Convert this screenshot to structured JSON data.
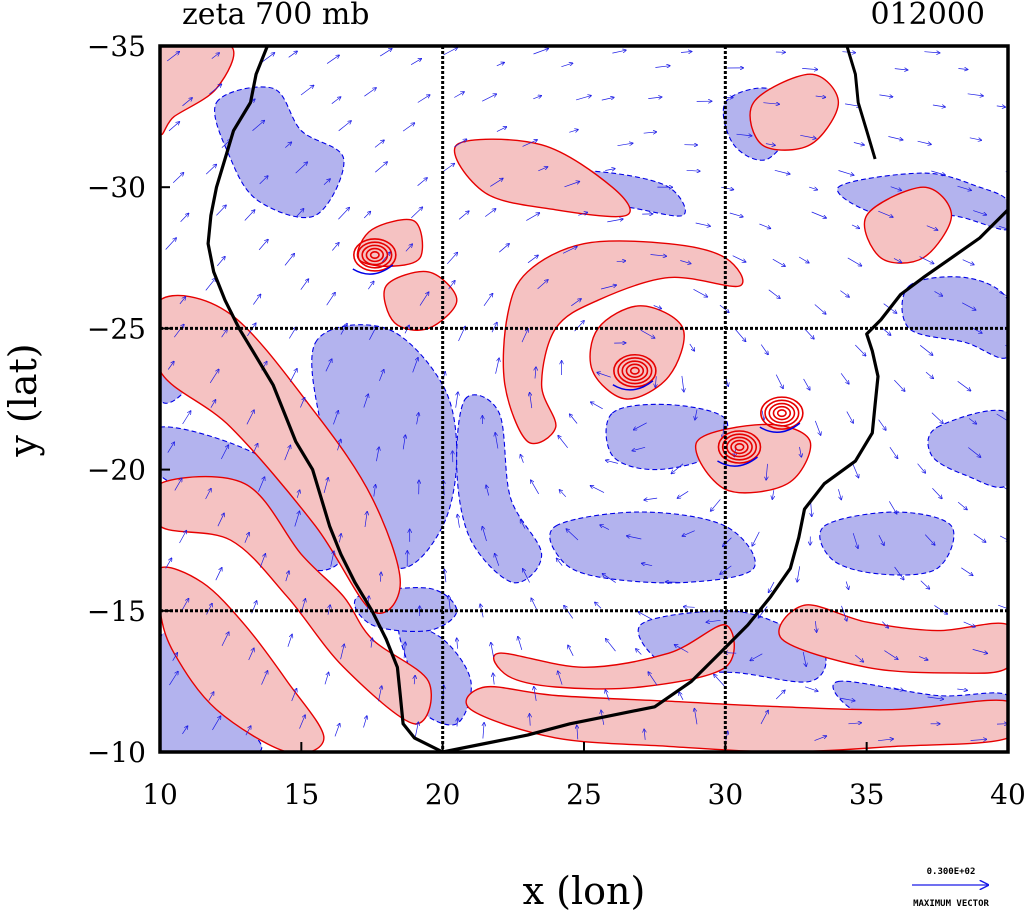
{
  "chart_data": {
    "type": "contour",
    "title": "zeta 700 mb",
    "timestamp": "012000",
    "xlabel": "x (lon)",
    "ylabel": "y (lat)",
    "xlim": [
      10,
      40
    ],
    "ylim": [
      -10,
      -35
    ],
    "xticks": [
      10,
      15,
      20,
      25,
      30,
      35,
      40
    ],
    "xtick_labels": [
      "10",
      "15",
      "20",
      "25",
      "30",
      "35",
      "40"
    ],
    "yticks": [
      -35,
      -30,
      -25,
      -20,
      -15,
      -10
    ],
    "ytick_labels": [
      "−35",
      "−30",
      "−25",
      "−20",
      "−15",
      "−10"
    ],
    "grid_lines": {
      "x": [
        20,
        30
      ],
      "y": [
        -25,
        -15
      ]
    },
    "vector_legend": {
      "value": "0.300E+02",
      "label": "MAXIMUM VECTOR"
    },
    "colors": {
      "positive_fill": "#f5c2c2",
      "positive_line": "#e60000",
      "negative_fill": "#b3b3ee",
      "negative_line": "#0000e6",
      "vector": "#1a1ae6",
      "coastline": "#000000"
    },
    "coastline": [
      [
        13.8,
        -35
      ],
      [
        13.4,
        -34
      ],
      [
        13.2,
        -33
      ],
      [
        12.6,
        -32
      ],
      [
        12.3,
        -31
      ],
      [
        12.0,
        -30
      ],
      [
        11.8,
        -29
      ],
      [
        11.7,
        -28
      ],
      [
        11.9,
        -27
      ],
      [
        12.3,
        -26
      ],
      [
        12.8,
        -25
      ],
      [
        13.4,
        -24
      ],
      [
        14.0,
        -23
      ],
      [
        14.4,
        -22
      ],
      [
        14.8,
        -21
      ],
      [
        15.4,
        -20
      ],
      [
        15.7,
        -19
      ],
      [
        16.0,
        -18
      ],
      [
        16.4,
        -17
      ],
      [
        16.9,
        -16
      ],
      [
        17.5,
        -15
      ],
      [
        18.0,
        -14
      ],
      [
        18.4,
        -13
      ],
      [
        18.5,
        -12
      ],
      [
        18.6,
        -11
      ],
      [
        19.0,
        -10.5
      ],
      [
        20.0,
        -10
      ],
      [
        21.5,
        -10.3
      ],
      [
        23.0,
        -10.6
      ],
      [
        24.5,
        -11.0
      ],
      [
        26.0,
        -11.3
      ],
      [
        27.5,
        -11.6
      ],
      [
        28.8,
        -12.5
      ],
      [
        29.8,
        -13.5
      ],
      [
        30.8,
        -14.5
      ],
      [
        31.6,
        -15.5
      ],
      [
        32.3,
        -16.5
      ],
      [
        32.6,
        -17.6
      ],
      [
        32.8,
        -18.6
      ],
      [
        33.5,
        -19.5
      ],
      [
        34.6,
        -20.3
      ],
      [
        35.2,
        -21.3
      ],
      [
        35.3,
        -22.3
      ],
      [
        35.4,
        -23.3
      ],
      [
        35.2,
        -24.2
      ],
      [
        35.0,
        -24.8
      ],
      [
        35.5,
        -25.3
      ],
      [
        36.2,
        -26.2
      ],
      [
        37.0,
        -26.8
      ],
      [
        38.0,
        -27.5
      ],
      [
        39.0,
        -28.2
      ],
      [
        40.0,
        -29.2
      ]
    ],
    "coastline_north": [
      [
        34.3,
        -35
      ],
      [
        34.6,
        -34
      ],
      [
        34.7,
        -33
      ],
      [
        35.0,
        -32
      ],
      [
        35.3,
        -31
      ]
    ],
    "positive_regions": [
      [
        [
          10,
          -35
        ],
        [
          12.5,
          -35
        ],
        [
          12.0,
          -33.5
        ],
        [
          10.5,
          -32.5
        ],
        [
          10,
          -32
        ]
      ],
      [
        [
          10,
          -26
        ],
        [
          12.5,
          -25.5
        ],
        [
          15.5,
          -22
        ],
        [
          17.5,
          -19
        ],
        [
          18.5,
          -16
        ],
        [
          17.5,
          -15
        ],
        [
          15.5,
          -18
        ],
        [
          12.5,
          -21.5
        ],
        [
          10,
          -23.5
        ]
      ],
      [
        [
          10,
          -19.5
        ],
        [
          13,
          -19.5
        ],
        [
          15,
          -17
        ],
        [
          16.5,
          -15.5
        ],
        [
          17.5,
          -14
        ],
        [
          19.5,
          -12.5
        ],
        [
          19.0,
          -11.0
        ],
        [
          16.5,
          -13
        ],
        [
          14.5,
          -15.5
        ],
        [
          12.5,
          -17.5
        ],
        [
          10,
          -18
        ]
      ],
      [
        [
          10,
          -16.5
        ],
        [
          11.5,
          -16
        ],
        [
          13.0,
          -14.5
        ],
        [
          14.5,
          -12.5
        ],
        [
          15.8,
          -10.5
        ],
        [
          14.5,
          -10
        ],
        [
          12.0,
          -11.5
        ],
        [
          10.5,
          -13.5
        ],
        [
          10,
          -15
        ]
      ],
      [
        [
          20.5,
          -31.5
        ],
        [
          23.5,
          -31.5
        ],
        [
          26,
          -30
        ],
        [
          26.5,
          -29
        ],
        [
          24,
          -29.2
        ],
        [
          21.5,
          -29.8
        ]
      ],
      [
        [
          23,
          -27
        ],
        [
          25,
          -28
        ],
        [
          28,
          -28
        ],
        [
          30,
          -27.5
        ],
        [
          30.5,
          -26.5
        ],
        [
          28,
          -26.8
        ],
        [
          25.5,
          -26
        ],
        [
          24,
          -25
        ],
        [
          23.5,
          -23
        ],
        [
          24,
          -21.5
        ],
        [
          23,
          -21
        ],
        [
          22.2,
          -23
        ],
        [
          22.3,
          -25.5
        ]
      ],
      [
        [
          18,
          -26.5
        ],
        [
          19.5,
          -27
        ],
        [
          20.5,
          -26
        ],
        [
          19.5,
          -25
        ],
        [
          18.3,
          -25.2
        ]
      ],
      [
        [
          25.5,
          -25
        ],
        [
          27,
          -25.8
        ],
        [
          28.5,
          -25
        ],
        [
          28,
          -23.3
        ],
        [
          26.5,
          -22.5
        ],
        [
          25.3,
          -23.5
        ]
      ],
      [
        [
          17.5,
          -28.5
        ],
        [
          19,
          -28.8
        ],
        [
          19.2,
          -27.5
        ],
        [
          18,
          -27.2
        ],
        [
          17.0,
          -27.5
        ]
      ],
      [
        [
          31,
          -33
        ],
        [
          33,
          -34
        ],
        [
          34,
          -33
        ],
        [
          33,
          -31.5
        ],
        [
          31.3,
          -31.5
        ]
      ],
      [
        [
          35,
          -29
        ],
        [
          37,
          -30
        ],
        [
          38,
          -29
        ],
        [
          37,
          -27.5
        ],
        [
          35.5,
          -27.5
        ]
      ],
      [
        [
          29,
          -21
        ],
        [
          31.5,
          -21.6
        ],
        [
          33,
          -21
        ],
        [
          32.2,
          -19.5
        ],
        [
          30,
          -19.3
        ]
      ],
      [
        [
          22,
          -13.5
        ],
        [
          25,
          -13
        ],
        [
          28,
          -13.5
        ],
        [
          30,
          -14.5
        ],
        [
          30,
          -13
        ],
        [
          27,
          -12.3
        ],
        [
          24,
          -12.3
        ],
        [
          22.3,
          -12.7
        ]
      ],
      [
        [
          21,
          -11.5
        ],
        [
          24,
          -10.5
        ],
        [
          28,
          -10.2
        ],
        [
          32,
          -10
        ],
        [
          36,
          -10.2
        ],
        [
          40,
          -10.5
        ],
        [
          40,
          -11.8
        ],
        [
          36,
          -11.5
        ],
        [
          32,
          -11.6
        ],
        [
          28,
          -11.8
        ],
        [
          24,
          -12
        ],
        [
          21.5,
          -12.3
        ]
      ],
      [
        [
          32,
          -14
        ],
        [
          35,
          -13
        ],
        [
          38,
          -12.8
        ],
        [
          40,
          -13
        ],
        [
          40,
          -14.5
        ],
        [
          37.5,
          -14.3
        ],
        [
          35,
          -14.6
        ],
        [
          32.8,
          -15.2
        ]
      ]
    ],
    "negative_regions": [
      [
        [
          12,
          -33
        ],
        [
          14,
          -33.5
        ],
        [
          15,
          -32
        ],
        [
          16.5,
          -31
        ],
        [
          15.5,
          -29
        ],
        [
          13.5,
          -29.5
        ],
        [
          12.5,
          -31
        ]
      ],
      [
        [
          10,
          -21.5
        ],
        [
          13.5,
          -20.5
        ],
        [
          15.5,
          -18.5
        ],
        [
          16.5,
          -17
        ],
        [
          15.3,
          -16.5
        ],
        [
          13,
          -18.5
        ],
        [
          10,
          -19.8
        ]
      ],
      [
        [
          10,
          -25.5
        ],
        [
          11,
          -24.8
        ],
        [
          11,
          -23
        ],
        [
          10,
          -22.5
        ]
      ],
      [
        [
          15.5,
          -24.5
        ],
        [
          18,
          -25
        ],
        [
          20,
          -23
        ],
        [
          20.5,
          -20.5
        ],
        [
          20,
          -18
        ],
        [
          18.5,
          -16.5
        ],
        [
          16.5,
          -18
        ],
        [
          15.8,
          -21
        ]
      ],
      [
        [
          20.8,
          -22.5
        ],
        [
          22,
          -22
        ],
        [
          22.4,
          -19
        ],
        [
          23.5,
          -17
        ],
        [
          22.5,
          -16
        ],
        [
          21,
          -17.5
        ],
        [
          20.5,
          -20
        ]
      ],
      [
        [
          24,
          -30.5
        ],
        [
          26,
          -30.5
        ],
        [
          28,
          -30
        ],
        [
          28.5,
          -29
        ],
        [
          26.5,
          -29.3
        ],
        [
          24.5,
          -29.5
        ]
      ],
      [
        [
          30,
          -33
        ],
        [
          31.5,
          -33.5
        ],
        [
          32.5,
          -32.5
        ],
        [
          31.5,
          -31
        ],
        [
          30.3,
          -31.5
        ]
      ],
      [
        [
          34,
          -30
        ],
        [
          37,
          -30.5
        ],
        [
          39,
          -30
        ],
        [
          40,
          -29.5
        ],
        [
          40,
          -28.5
        ],
        [
          38,
          -29
        ],
        [
          35.5,
          -29
        ]
      ],
      [
        [
          36.5,
          -26.5
        ],
        [
          38.5,
          -26.8
        ],
        [
          40,
          -26
        ],
        [
          40,
          -24
        ],
        [
          38.5,
          -24.5
        ],
        [
          36.5,
          -25
        ]
      ],
      [
        [
          37.5,
          -21.5
        ],
        [
          40,
          -22
        ],
        [
          40,
          -19.5
        ],
        [
          38.5,
          -19.8
        ],
        [
          37.3,
          -20.5
        ]
      ],
      [
        [
          26,
          -22
        ],
        [
          28,
          -22.3
        ],
        [
          30,
          -21.8
        ],
        [
          29.5,
          -20.5
        ],
        [
          27.5,
          -20
        ],
        [
          26,
          -20.5
        ]
      ],
      [
        [
          24,
          -18
        ],
        [
          27,
          -18.5
        ],
        [
          30,
          -18
        ],
        [
          31,
          -16.5
        ],
        [
          28.5,
          -16
        ],
        [
          25.5,
          -16.2
        ],
        [
          24.2,
          -16.8
        ]
      ],
      [
        [
          18.5,
          -14.5
        ],
        [
          20,
          -14
        ],
        [
          21,
          -12.5
        ],
        [
          20.5,
          -11
        ],
        [
          19.2,
          -11.5
        ],
        [
          18.8,
          -13
        ]
      ],
      [
        [
          27,
          -14.5
        ],
        [
          30,
          -15
        ],
        [
          32,
          -14.5
        ],
        [
          33.5,
          -13.5
        ],
        [
          33,
          -12.5
        ],
        [
          30.5,
          -12.8
        ],
        [
          28,
          -13
        ]
      ],
      [
        [
          33.5,
          -18
        ],
        [
          36,
          -18.5
        ],
        [
          38,
          -18
        ],
        [
          37.5,
          -16.5
        ],
        [
          35.5,
          -16.3
        ],
        [
          33.8,
          -16.8
        ]
      ],
      [
        [
          10,
          -14
        ],
        [
          11,
          -13.5
        ],
        [
          12.5,
          -11.5
        ],
        [
          13.5,
          -10
        ],
        [
          10,
          -10
        ]
      ],
      [
        [
          34,
          -12.5
        ],
        [
          37.5,
          -12
        ],
        [
          40,
          -12
        ],
        [
          40,
          -10.5
        ],
        [
          36.5,
          -11
        ],
        [
          34.5,
          -11.5
        ]
      ],
      [
        [
          17,
          -15.5
        ],
        [
          19.5,
          -15.8
        ],
        [
          20.5,
          -15
        ],
        [
          19.5,
          -14.3
        ],
        [
          17.5,
          -14.5
        ]
      ]
    ],
    "vortices": [
      {
        "lon": 26.8,
        "lat": -23.5,
        "sign": "positive"
      },
      {
        "lon": 32.0,
        "lat": -22.0,
        "sign": "positive"
      },
      {
        "lon": 30.5,
        "lat": -20.8,
        "sign": "positive"
      },
      {
        "lon": 17.6,
        "lat": -27.6,
        "sign": "positive"
      }
    ]
  }
}
